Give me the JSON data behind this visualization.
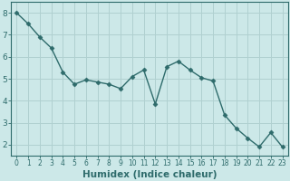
{
  "x": [
    0,
    1,
    2,
    3,
    4,
    5,
    6,
    7,
    8,
    9,
    10,
    11,
    12,
    13,
    14,
    15,
    16,
    17,
    18,
    19,
    20,
    21,
    22,
    23
  ],
  "y": [
    8.0,
    7.5,
    6.9,
    6.4,
    5.3,
    4.75,
    4.95,
    4.85,
    4.75,
    4.55,
    5.1,
    5.4,
    3.85,
    5.55,
    5.8,
    5.4,
    5.05,
    4.9,
    3.35,
    2.75,
    2.3,
    1.9,
    2.55,
    1.9
  ],
  "line_color": "#2e6b6b",
  "marker": "D",
  "marker_size": 2.5,
  "bg_color": "#cce8e8",
  "grid_color": "#b0d0d0",
  "xlabel": "Humidex (Indice chaleur)",
  "ylim": [
    1.5,
    8.5
  ],
  "xlim": [
    -0.5,
    23.5
  ],
  "yticks": [
    2,
    3,
    4,
    5,
    6,
    7,
    8
  ],
  "xticks": [
    0,
    1,
    2,
    3,
    4,
    5,
    6,
    7,
    8,
    9,
    10,
    11,
    12,
    13,
    14,
    15,
    16,
    17,
    18,
    19,
    20,
    21,
    22,
    23
  ],
  "tick_color": "#2e6b6b",
  "xlabel_fontsize": 7.5,
  "ytick_fontsize": 6.5,
  "xtick_fontsize": 5.5,
  "line_width": 1.0
}
